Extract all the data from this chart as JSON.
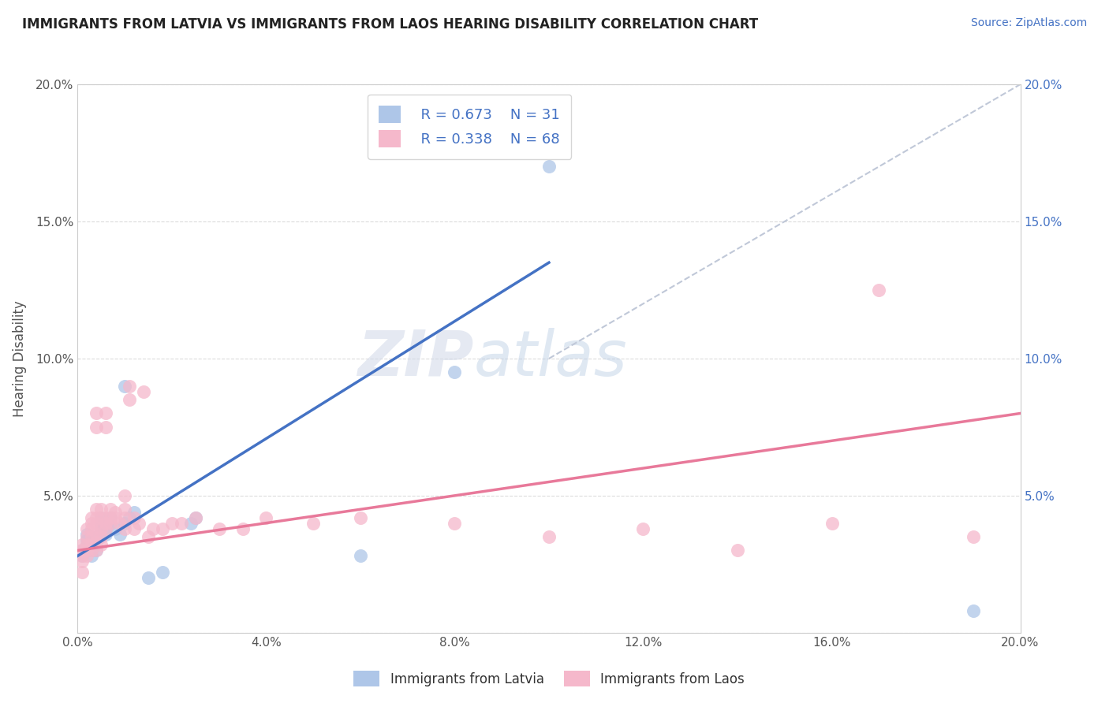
{
  "title": "IMMIGRANTS FROM LATVIA VS IMMIGRANTS FROM LAOS HEARING DISABILITY CORRELATION CHART",
  "source": "Source: ZipAtlas.com",
  "ylabel": "Hearing Disability",
  "xlim": [
    0.0,
    0.2
  ],
  "ylim": [
    0.0,
    0.2
  ],
  "x_ticks": [
    0.0,
    0.04,
    0.08,
    0.12,
    0.16,
    0.2
  ],
  "y_ticks": [
    0.0,
    0.05,
    0.1,
    0.15,
    0.2
  ],
  "watermark_zip": "ZIP",
  "watermark_atlas": "atlas",
  "legend_r1": "R = 0.673",
  "legend_n1": "N = 31",
  "legend_r2": "R = 0.338",
  "legend_n2": "N = 68",
  "latvia_color": "#aec6e8",
  "laos_color": "#f5b8cb",
  "latvia_line_color": "#4472c4",
  "laos_line_color": "#e8799a",
  "trend_line_color": "#c0c8d8",
  "background_color": "#ffffff",
  "plot_bg_color": "#ffffff",
  "grid_color": "#d8d8d8",
  "latvia_points": [
    [
      0.001,
      0.028
    ],
    [
      0.001,
      0.03
    ],
    [
      0.002,
      0.032
    ],
    [
      0.002,
      0.034
    ],
    [
      0.002,
      0.036
    ],
    [
      0.003,
      0.03
    ],
    [
      0.003,
      0.033
    ],
    [
      0.003,
      0.028
    ],
    [
      0.004,
      0.035
    ],
    [
      0.004,
      0.03
    ],
    [
      0.005,
      0.038
    ],
    [
      0.005,
      0.04
    ],
    [
      0.005,
      0.042
    ],
    [
      0.006,
      0.038
    ],
    [
      0.006,
      0.036
    ],
    [
      0.007,
      0.042
    ],
    [
      0.007,
      0.04
    ],
    [
      0.008,
      0.038
    ],
    [
      0.009,
      0.036
    ],
    [
      0.01,
      0.04
    ],
    [
      0.01,
      0.09
    ],
    [
      0.011,
      0.042
    ],
    [
      0.012,
      0.044
    ],
    [
      0.015,
      0.02
    ],
    [
      0.018,
      0.022
    ],
    [
      0.024,
      0.04
    ],
    [
      0.025,
      0.042
    ],
    [
      0.06,
      0.028
    ],
    [
      0.08,
      0.095
    ],
    [
      0.1,
      0.17
    ],
    [
      0.19,
      0.008
    ]
  ],
  "laos_points": [
    [
      0.001,
      0.026
    ],
    [
      0.001,
      0.028
    ],
    [
      0.001,
      0.03
    ],
    [
      0.001,
      0.032
    ],
    [
      0.001,
      0.022
    ],
    [
      0.002,
      0.028
    ],
    [
      0.002,
      0.03
    ],
    [
      0.002,
      0.032
    ],
    [
      0.002,
      0.035
    ],
    [
      0.002,
      0.038
    ],
    [
      0.003,
      0.03
    ],
    [
      0.003,
      0.032
    ],
    [
      0.003,
      0.035
    ],
    [
      0.003,
      0.038
    ],
    [
      0.003,
      0.04
    ],
    [
      0.003,
      0.042
    ],
    [
      0.004,
      0.03
    ],
    [
      0.004,
      0.033
    ],
    [
      0.004,
      0.036
    ],
    [
      0.004,
      0.04
    ],
    [
      0.004,
      0.042
    ],
    [
      0.004,
      0.045
    ],
    [
      0.004,
      0.075
    ],
    [
      0.004,
      0.08
    ],
    [
      0.005,
      0.032
    ],
    [
      0.005,
      0.035
    ],
    [
      0.005,
      0.038
    ],
    [
      0.005,
      0.042
    ],
    [
      0.005,
      0.045
    ],
    [
      0.006,
      0.038
    ],
    [
      0.006,
      0.04
    ],
    [
      0.006,
      0.042
    ],
    [
      0.006,
      0.075
    ],
    [
      0.006,
      0.08
    ],
    [
      0.007,
      0.04
    ],
    [
      0.007,
      0.042
    ],
    [
      0.007,
      0.045
    ],
    [
      0.008,
      0.042
    ],
    [
      0.008,
      0.044
    ],
    [
      0.009,
      0.04
    ],
    [
      0.01,
      0.038
    ],
    [
      0.01,
      0.042
    ],
    [
      0.01,
      0.045
    ],
    [
      0.01,
      0.05
    ],
    [
      0.011,
      0.085
    ],
    [
      0.011,
      0.09
    ],
    [
      0.012,
      0.038
    ],
    [
      0.012,
      0.042
    ],
    [
      0.013,
      0.04
    ],
    [
      0.014,
      0.088
    ],
    [
      0.015,
      0.035
    ],
    [
      0.016,
      0.038
    ],
    [
      0.018,
      0.038
    ],
    [
      0.02,
      0.04
    ],
    [
      0.022,
      0.04
    ],
    [
      0.025,
      0.042
    ],
    [
      0.03,
      0.038
    ],
    [
      0.035,
      0.038
    ],
    [
      0.04,
      0.042
    ],
    [
      0.05,
      0.04
    ],
    [
      0.06,
      0.042
    ],
    [
      0.08,
      0.04
    ],
    [
      0.1,
      0.035
    ],
    [
      0.12,
      0.038
    ],
    [
      0.14,
      0.03
    ],
    [
      0.16,
      0.04
    ],
    [
      0.17,
      0.125
    ],
    [
      0.19,
      0.035
    ]
  ]
}
